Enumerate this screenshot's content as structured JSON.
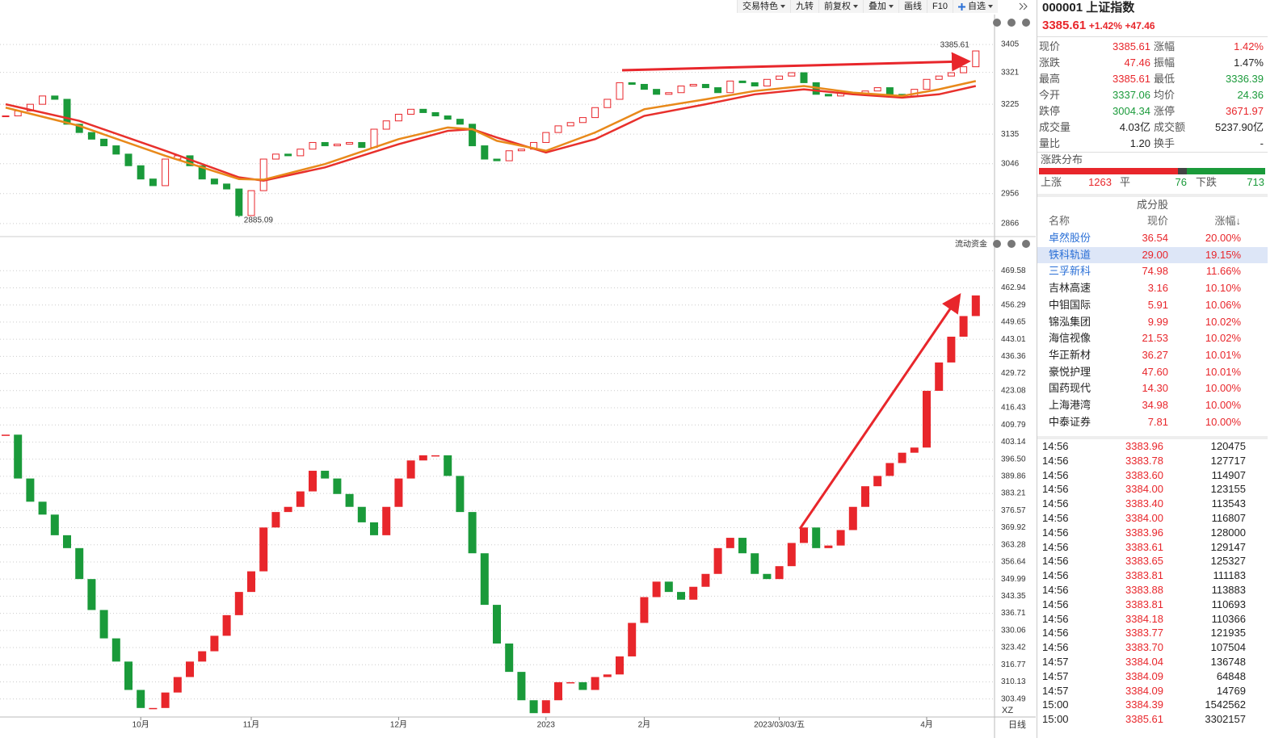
{
  "toolbar": {
    "buttons": [
      "交易特色",
      "九转",
      "前复权",
      "叠加",
      "画线",
      "F10",
      "自选"
    ]
  },
  "chart_data": [
    {
      "type": "candlestick",
      "values": [
        3190,
        3205,
        3225,
        3250,
        3240,
        3165,
        3140,
        3120,
        3100,
        3075,
        3040,
        3000,
        2980,
        3060,
        3070,
        3040,
        3000,
        2985,
        2970,
        2890,
        2965,
        3060,
        3075,
        3070,
        3090,
        3110,
        3100,
        3105,
        3110,
        3095,
        3150,
        3175,
        3195,
        3210,
        3200,
        3190,
        3180,
        3165,
        3100,
        3060,
        3055,
        3085,
        3090,
        3110,
        3140,
        3160,
        3170,
        3185,
        3215,
        3240,
        3290,
        3285,
        3270,
        3255,
        3260,
        3280,
        3285,
        3275,
        3260,
        3295,
        3290,
        3280,
        3300,
        3310,
        3320,
        3290,
        3255,
        3250,
        3260,
        3255,
        3265,
        3275,
        3255,
        3250,
        3270,
        3300,
        3310,
        3320,
        3338,
        3385.61
      ],
      "up_color": "#e8262b",
      "down_color": "#1a9a3a",
      "series": [
        {
          "color": "#e8302c",
          "x": [
            0,
            6,
            13,
            19,
            21,
            26,
            32,
            36,
            38,
            40,
            44,
            48,
            52,
            57,
            61,
            65,
            69,
            73,
            76,
            79
          ],
          "values": [
            3225,
            3175,
            3085,
            3005,
            2995,
            3035,
            3105,
            3145,
            3150,
            3125,
            3080,
            3120,
            3190,
            3225,
            3255,
            3270,
            3255,
            3245,
            3255,
            3280
          ]
        },
        {
          "color": "#e8891a",
          "x": [
            0,
            6,
            13,
            19,
            21,
            26,
            32,
            36,
            38,
            40,
            44,
            48,
            52,
            57,
            61,
            65,
            69,
            73,
            76,
            79
          ],
          "values": [
            3215,
            3160,
            3070,
            3000,
            2998,
            3045,
            3120,
            3155,
            3150,
            3115,
            3085,
            3140,
            3210,
            3240,
            3265,
            3280,
            3260,
            3250,
            3270,
            3295
          ]
        }
      ],
      "low": {
        "x": 19,
        "value": 2885.09
      },
      "ylim": [
        2834,
        3466
      ],
      "yticks": [
        3405,
        3321,
        3225,
        3135,
        3046,
        2956,
        2866
      ],
      "grid": true
    },
    {
      "type": "brick",
      "title": "流动资金",
      "values": [
        406,
        389,
        380,
        375,
        367,
        362,
        350,
        338,
        327,
        318,
        307,
        300,
        300,
        306,
        312,
        318,
        322,
        328,
        336,
        345,
        353,
        370,
        376,
        378,
        384,
        392,
        389,
        383,
        378,
        372,
        367,
        378,
        389,
        396,
        398,
        398,
        390,
        376,
        360,
        340,
        325,
        314,
        303,
        298,
        303,
        310,
        310,
        307,
        312,
        313,
        320,
        333,
        343,
        349,
        345,
        342,
        347,
        352,
        362,
        366,
        360,
        352,
        350,
        355,
        364,
        370,
        362,
        363,
        369,
        378,
        386,
        390,
        395,
        399,
        401,
        423,
        434,
        444,
        452,
        460
      ],
      "up_color": "#e8262b",
      "down_color": "#1a9a3a",
      "ylim": [
        296.5,
        477.5
      ],
      "yticks": [
        469.58,
        462.94,
        456.29,
        449.65,
        443.01,
        436.36,
        429.72,
        423.08,
        416.43,
        409.79,
        403.14,
        {
          "value": 396.5,
          "label": "396.50"
        },
        389.86,
        383.21,
        376.57,
        369.92,
        363.28,
        356.64,
        349.99,
        343.35,
        336.71,
        330.06,
        323.42,
        316.77,
        310.13,
        303.49
      ],
      "xticks": [
        {
          "value": 11,
          "label": "10月"
        },
        {
          "value": 20,
          "label": "11月"
        },
        {
          "value": 32,
          "label": "12月"
        },
        {
          "value": 44,
          "label": "2023"
        },
        {
          "value": 52,
          "label": "2月"
        },
        {
          "value": 63,
          "label": "2023/03/03/五"
        },
        {
          "value": 75,
          "label": "4月"
        }
      ],
      "x_label": "XZ",
      "period": "日线",
      "grid": true
    }
  ],
  "quote": {
    "code": "000001",
    "name": "上证指数",
    "price": "3385.61",
    "change_pct": "+1.42%",
    "change": "+47.46",
    "stats": [
      [
        "现价",
        "3385.61",
        "涨幅",
        "1.42%"
      ],
      [
        "涨跌",
        "47.46",
        "振幅",
        "1.47%"
      ],
      [
        "最高",
        "3385.61",
        "最低",
        "3336.39"
      ],
      [
        "今开",
        "3337.06",
        "均价",
        "24.36"
      ],
      [
        "跌停",
        "3004.34",
        "涨停",
        "3671.97"
      ],
      [
        "成交量",
        "4.03亿",
        "成交额",
        "5237.90亿"
      ],
      [
        "量比",
        "1.20",
        "换手",
        "-"
      ]
    ]
  },
  "breadth": {
    "title": "涨跌分布",
    "up_label": "上涨",
    "up": 1263,
    "flat_label": "平",
    "flat": 76,
    "down_label": "下跌",
    "down": 713
  },
  "constituents": {
    "title": "成分股",
    "headers": [
      "名称",
      "现价",
      "涨幅↓"
    ],
    "rows": [
      [
        "卓然股份",
        "36.54",
        "20.00%"
      ],
      [
        "铁科轨道",
        "29.00",
        "19.15%"
      ],
      [
        "三孚新科",
        "74.98",
        "11.66%"
      ],
      [
        "吉林高速",
        "3.16",
        "10.10%"
      ],
      [
        "中钼国际",
        "5.91",
        "10.06%"
      ],
      [
        "锦泓集团",
        "9.99",
        "10.02%"
      ],
      [
        "海信视像",
        "21.53",
        "10.02%"
      ],
      [
        "华正新材",
        "36.27",
        "10.01%"
      ],
      [
        "豪悦护理",
        "47.60",
        "10.01%"
      ],
      [
        "国药现代",
        "14.30",
        "10.00%"
      ],
      [
        "上海港湾",
        "34.98",
        "10.00%"
      ],
      [
        "中泰证券",
        "7.81",
        "10.00%"
      ]
    ]
  },
  "ticks": {
    "rows": [
      [
        "14:56",
        "3383.96",
        "120475"
      ],
      [
        "14:56",
        "3383.78",
        "127717"
      ],
      [
        "14:56",
        "3383.60",
        "114907"
      ],
      [
        "14:56",
        "3384.00",
        "123155"
      ],
      [
        "14:56",
        "3383.40",
        "113543"
      ],
      [
        "14:56",
        "3384.00",
        "116807"
      ],
      [
        "14:56",
        "3383.96",
        "128000"
      ],
      [
        "14:56",
        "3383.61",
        "129147"
      ],
      [
        "14:56",
        "3383.65",
        "125327"
      ],
      [
        "14:56",
        "3383.81",
        "111183"
      ],
      [
        "14:56",
        "3383.88",
        "113883"
      ],
      [
        "14:56",
        "3383.81",
        "110693"
      ],
      [
        "14:56",
        "3384.18",
        "110366"
      ],
      [
        "14:56",
        "3383.77",
        "121935"
      ],
      [
        "14:56",
        "3383.70",
        "107504"
      ],
      [
        "14:57",
        "3384.04",
        "136748"
      ],
      [
        "14:57",
        "3384.09",
        "64848"
      ],
      [
        "14:57",
        "3384.09",
        "14769"
      ],
      [
        "15:00",
        "3384.39",
        "1542562"
      ],
      [
        "15:00",
        "3385.61",
        "3302157"
      ]
    ]
  }
}
